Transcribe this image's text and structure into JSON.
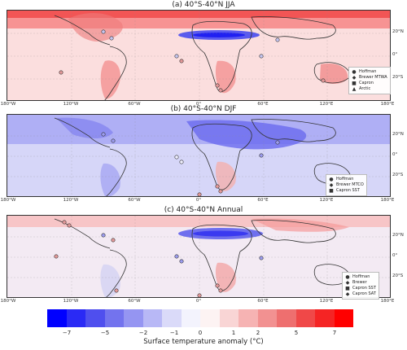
{
  "panels": [
    {
      "title": "(a) 40°S-40°N JJA",
      "legend": [
        {
          "symbol": "●",
          "label": "Hoffman"
        },
        {
          "symbol": "◆",
          "label": "Brewer MTWA"
        },
        {
          "symbol": "■",
          "label": "Capron"
        },
        {
          "symbol": "▲",
          "label": "Arctic"
        }
      ]
    },
    {
      "title": "(b) 40°S-40°N DJF",
      "legend": [
        {
          "symbol": "●",
          "label": "Hoffman"
        },
        {
          "symbol": "◆",
          "label": "Brewer MTCO"
        },
        {
          "symbol": "■",
          "label": "Capron SST"
        }
      ]
    },
    {
      "title": "(c) 40°S-40°N Annual",
      "legend": [
        {
          "symbol": "●",
          "label": "Hoffman"
        },
        {
          "symbol": "◆",
          "label": "Brewer"
        },
        {
          "symbol": "■",
          "label": "Capron SST"
        },
        {
          "symbol": "◆",
          "label": "Capron SAT"
        }
      ]
    }
  ],
  "lon_labels": [
    "180°W",
    "120°W",
    "60°W",
    "0°",
    "60°E",
    "120°E",
    "180°E"
  ],
  "lat_labels": [
    "20°N",
    "0°",
    "20°S"
  ],
  "colorbar": {
    "label": "Surface temperature anomaly (°C)",
    "ticks": [
      "−7",
      "−5",
      "−2",
      "−1",
      "0",
      "1",
      "2",
      "5",
      "7"
    ],
    "colors": [
      "#0000ff",
      "#2a2af5",
      "#4f4fee",
      "#7373ee",
      "#9595f2",
      "#b8b8f6",
      "#dadaf9",
      "#f3f3fd",
      "#fdf3f3",
      "#f9d5d5",
      "#f6b3b3",
      "#f29191",
      "#ee6f6f",
      "#f04848",
      "#f52424",
      "#ff0000"
    ]
  }
}
